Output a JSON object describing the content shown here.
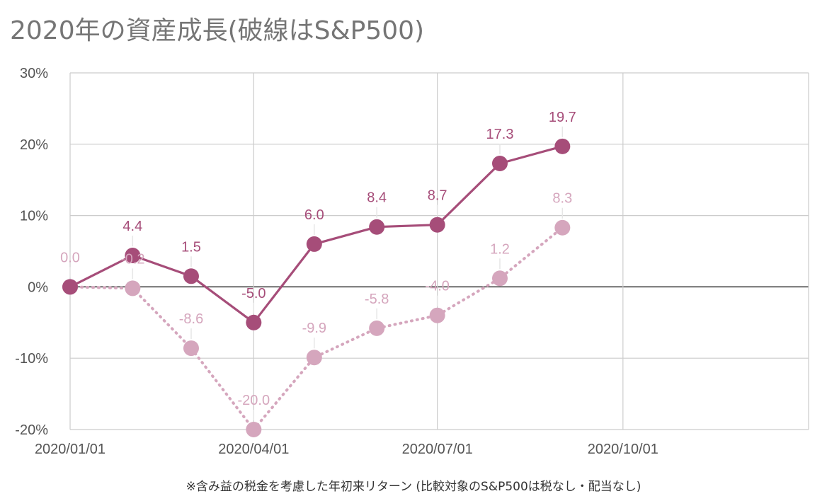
{
  "title": "2020年の資産成長(破線はS&P500)",
  "footnote": "※含み益の税金を考慮した年初来リターン (比較対象のS&P500は税なし・配当なし)",
  "colors": {
    "primary": "#a64d79",
    "secondary": "#d5a6bd",
    "grid": "#cccccc",
    "zero": "#333333",
    "text": "#555555"
  },
  "chart_data": {
    "type": "line",
    "title": "2020年の資産成長(破線はS&P500)",
    "x": [
      "2020/01/01",
      "2020/02/01",
      "2020/03/01",
      "2020/04/01",
      "2020/05/01",
      "2020/06/01",
      "2020/07/01",
      "2020/08/01",
      "2020/09/01"
    ],
    "x_ticks": [
      "2020/01/01",
      "2020/04/01",
      "2020/07/01",
      "2020/10/01"
    ],
    "x_range": [
      "2020/01/01",
      "2021/01/01"
    ],
    "y_ticks": [
      "30%",
      "20%",
      "10%",
      "0%",
      "-10%",
      "-20%"
    ],
    "ylim": [
      -20,
      30
    ],
    "grid": true,
    "series": [
      {
        "name": "",
        "style": "solid",
        "color": "#a64d79",
        "values": [
          0.0,
          4.4,
          1.5,
          -5.0,
          6.0,
          8.4,
          8.7,
          17.3,
          19.7
        ],
        "labels": [
          "",
          "4.4",
          "1.5",
          "-5.0",
          "6.0",
          "8.4",
          "8.7",
          "17.3",
          "19.7"
        ]
      },
      {
        "name": "S&P500",
        "style": "dotted",
        "color": "#d5a6bd",
        "values": [
          0.0,
          -0.2,
          -8.6,
          -20.0,
          -9.9,
          -5.8,
          -4.0,
          1.2,
          8.3
        ],
        "labels": [
          "0.0",
          "-0.2",
          "-8.6",
          "-20.0",
          "-9.9",
          "-5.8",
          "-4.0",
          "1.2",
          "8.3"
        ]
      }
    ]
  }
}
